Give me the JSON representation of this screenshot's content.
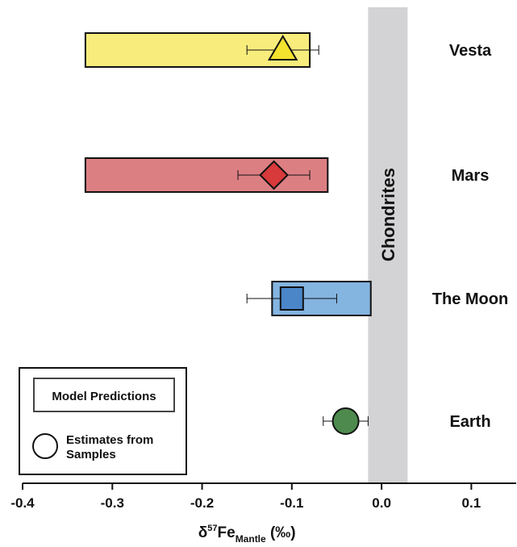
{
  "chart_data": {
    "type": "range-with-error-bars",
    "xlabel": {
      "prefix": "δ",
      "superscript": "57",
      "base": "Fe",
      "subscript": "Mantle",
      "unit": " (‰)"
    },
    "xlim": [
      -0.4,
      0.15
    ],
    "xticks": [
      -0.4,
      -0.3,
      -0.2,
      -0.1,
      0.0,
      0.1
    ],
    "tick_labels": [
      "-0.4",
      "-0.3",
      "-0.2",
      "-0.1",
      "0.0",
      "0.1"
    ],
    "chondrites": {
      "label": "Chondrites",
      "range": [
        -0.015,
        0.029
      ],
      "color": "#d3d3d5"
    },
    "bodies": [
      {
        "name": "Vesta",
        "marker": "triangle",
        "color": "#f3e22e",
        "box_color": "#f7ec7c",
        "model_range": [
          -0.33,
          -0.08
        ],
        "estimate": -0.11,
        "err_low": -0.15,
        "err_high": -0.07
      },
      {
        "name": "Mars",
        "marker": "diamond",
        "color": "#d8393a",
        "box_color": "#dc7f83",
        "model_range": [
          -0.33,
          -0.06
        ],
        "estimate": -0.12,
        "err_low": -0.16,
        "err_high": -0.08
      },
      {
        "name": "The Moon",
        "marker": "square",
        "color": "#4a86c8",
        "box_color": "#84b4e0",
        "model_range": [
          -0.122,
          -0.012
        ],
        "estimate": -0.1,
        "err_low": -0.15,
        "err_high": -0.05
      },
      {
        "name": "Earth",
        "marker": "circle",
        "color": "#4e8a4e",
        "box_color": null,
        "model_range": null,
        "estimate": -0.04,
        "err_low": -0.065,
        "err_high": -0.015
      }
    ],
    "legend": {
      "placement": "bottom-left",
      "model_label": "Model Predictions",
      "estimate_label_line1": "Estimates from",
      "estimate_label_line2": "Samples"
    }
  }
}
